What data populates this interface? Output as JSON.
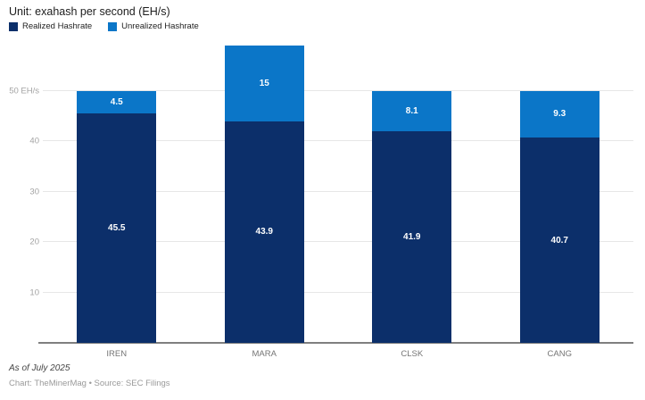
{
  "header": {
    "title": "Unit: exahash per second (EH/s)"
  },
  "legend": [
    {
      "label": "Realized Hashrate",
      "color": "#0c2f6a"
    },
    {
      "label": "Unrealized Hashrate",
      "color": "#0b76c8"
    }
  ],
  "chart_data": {
    "type": "bar",
    "stacked": true,
    "categories": [
      "IREN",
      "MARA",
      "CLSK",
      "CANG"
    ],
    "series": [
      {
        "name": "Realized Hashrate",
        "color": "#0c2f6a",
        "values": [
          45.5,
          43.9,
          41.9,
          40.7
        ],
        "labels": [
          "45.5",
          "43.9",
          "41.9",
          "40.7"
        ]
      },
      {
        "name": "Unrealized Hashrate",
        "color": "#0b76c8",
        "values": [
          4.5,
          15,
          8.1,
          9.3
        ],
        "labels": [
          "4.5",
          "15",
          "8.1",
          "9.3"
        ]
      }
    ],
    "totals": [
      50,
      58.9,
      50,
      50
    ],
    "title": "Unit: exahash per second (EH/s)",
    "xlabel": "",
    "ylabel": "EH/s",
    "ylim": [
      0,
      60
    ],
    "yticks": [
      {
        "value": 10,
        "label": "10"
      },
      {
        "value": 20,
        "label": "20"
      },
      {
        "value": 30,
        "label": "30"
      },
      {
        "value": 40,
        "label": "40"
      },
      {
        "value": 50,
        "label": "50 EH/s"
      }
    ],
    "grid": true,
    "legend_position": "top-left"
  },
  "footer": {
    "as_of": "As of July 2025",
    "credit": "Chart: TheMinerMag • Source: SEC Filings"
  }
}
